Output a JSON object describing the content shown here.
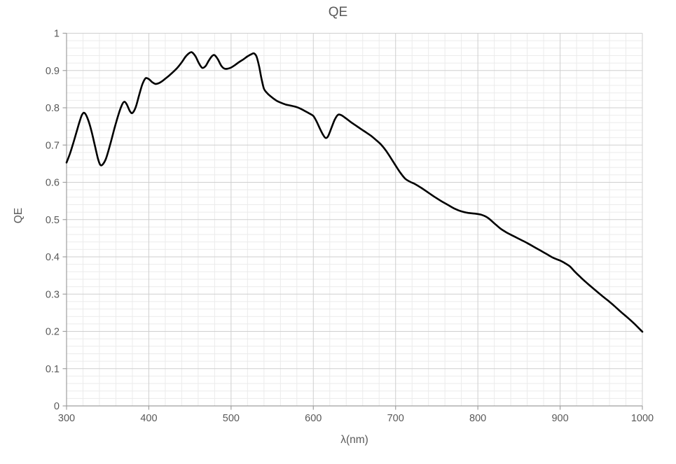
{
  "style": {
    "background": "#ffffff",
    "text_color": "#595959",
    "curve_color": "#000000",
    "grid_major_color": "#cfcfcf",
    "grid_minor_color": "#ebebeb",
    "axis_color": "#9f9f9f",
    "tick_label_font_px": 14.5
  },
  "chart": {
    "title": "QE",
    "x_axis_title": "λ(nm)",
    "y_axis_title": "QE"
  },
  "chart_data": {
    "type": "line",
    "title": "QE",
    "xlabel": "λ(nm)",
    "ylabel": "QE",
    "xlim": [
      300,
      1000
    ],
    "ylim": [
      0,
      1
    ],
    "x_major_step": 100,
    "x_minor_step": 20,
    "y_major_step": 0.1,
    "y_minor_step": 0.02,
    "grid": "major and minor gridlines on both axes",
    "legend": "none",
    "x_ticks": [
      {
        "v": 300,
        "label": "300"
      },
      {
        "v": 400,
        "label": "400"
      },
      {
        "v": 500,
        "label": "500"
      },
      {
        "v": 600,
        "label": "600"
      },
      {
        "v": 700,
        "label": "700"
      },
      {
        "v": 800,
        "label": "800"
      },
      {
        "v": 900,
        "label": "900"
      },
      {
        "v": 1000,
        "label": "1000"
      }
    ],
    "y_ticks": [
      {
        "v": 1,
        "label": "1"
      },
      {
        "v": 0.9,
        "label": "0.9"
      },
      {
        "v": 0.8,
        "label": "0.8"
      },
      {
        "v": 0.7,
        "label": "0.7"
      },
      {
        "v": 0.6,
        "label": "0.6"
      },
      {
        "v": 0.5,
        "label": "0.5"
      },
      {
        "v": 0.4,
        "label": "0.4"
      },
      {
        "v": 0.3,
        "label": "0.3"
      },
      {
        "v": 0.2,
        "label": "0.2"
      },
      {
        "v": 0.1,
        "label": "0.1"
      },
      {
        "v": 0,
        "label": "0"
      }
    ],
    "series": [
      {
        "name": "QE",
        "color": "#000000",
        "stroke_width": 2.6,
        "points": [
          [
            300,
            0.653
          ],
          [
            304,
            0.676
          ],
          [
            308,
            0.704
          ],
          [
            312,
            0.734
          ],
          [
            316,
            0.764
          ],
          [
            319,
            0.782
          ],
          [
            322,
            0.786
          ],
          [
            326,
            0.769
          ],
          [
            330,
            0.74
          ],
          [
            334,
            0.703
          ],
          [
            338,
            0.665
          ],
          [
            341,
            0.647
          ],
          [
            344,
            0.648
          ],
          [
            348,
            0.664
          ],
          [
            353,
            0.701
          ],
          [
            358,
            0.743
          ],
          [
            363,
            0.781
          ],
          [
            367,
            0.806
          ],
          [
            370,
            0.816
          ],
          [
            373,
            0.81
          ],
          [
            377,
            0.791
          ],
          [
            380,
            0.786
          ],
          [
            384,
            0.801
          ],
          [
            388,
            0.832
          ],
          [
            392,
            0.862
          ],
          [
            396,
            0.879
          ],
          [
            400,
            0.877
          ],
          [
            404,
            0.869
          ],
          [
            408,
            0.864
          ],
          [
            412,
            0.866
          ],
          [
            416,
            0.871
          ],
          [
            420,
            0.878
          ],
          [
            425,
            0.887
          ],
          [
            430,
            0.897
          ],
          [
            435,
            0.908
          ],
          [
            440,
            0.922
          ],
          [
            445,
            0.938
          ],
          [
            450,
            0.948
          ],
          [
            453,
            0.948
          ],
          [
            457,
            0.937
          ],
          [
            461,
            0.919
          ],
          [
            465,
            0.907
          ],
          [
            469,
            0.912
          ],
          [
            473,
            0.927
          ],
          [
            477,
            0.939
          ],
          [
            480,
            0.941
          ],
          [
            484,
            0.93
          ],
          [
            488,
            0.913
          ],
          [
            492,
            0.905
          ],
          [
            496,
            0.905
          ],
          [
            500,
            0.908
          ],
          [
            505,
            0.915
          ],
          [
            510,
            0.923
          ],
          [
            515,
            0.93
          ],
          [
            520,
            0.938
          ],
          [
            525,
            0.944
          ],
          [
            528,
            0.946
          ],
          [
            531,
            0.937
          ],
          [
            534,
            0.912
          ],
          [
            537,
            0.878
          ],
          [
            540,
            0.851
          ],
          [
            544,
            0.839
          ],
          [
            548,
            0.831
          ],
          [
            552,
            0.824
          ],
          [
            556,
            0.818
          ],
          [
            560,
            0.814
          ],
          [
            566,
            0.809
          ],
          [
            572,
            0.806
          ],
          [
            578,
            0.803
          ],
          [
            584,
            0.798
          ],
          [
            590,
            0.791
          ],
          [
            595,
            0.785
          ],
          [
            600,
            0.778
          ],
          [
            604,
            0.763
          ],
          [
            608,
            0.744
          ],
          [
            612,
            0.727
          ],
          [
            615,
            0.719
          ],
          [
            618,
            0.724
          ],
          [
            622,
            0.746
          ],
          [
            626,
            0.768
          ],
          [
            630,
            0.781
          ],
          [
            634,
            0.78
          ],
          [
            640,
            0.771
          ],
          [
            646,
            0.761
          ],
          [
            652,
            0.752
          ],
          [
            658,
            0.743
          ],
          [
            664,
            0.734
          ],
          [
            670,
            0.725
          ],
          [
            676,
            0.714
          ],
          [
            682,
            0.702
          ],
          [
            688,
            0.686
          ],
          [
            694,
            0.666
          ],
          [
            700,
            0.645
          ],
          [
            706,
            0.625
          ],
          [
            712,
            0.609
          ],
          [
            718,
            0.601
          ],
          [
            724,
            0.595
          ],
          [
            732,
            0.584
          ],
          [
            740,
            0.572
          ],
          [
            748,
            0.56
          ],
          [
            756,
            0.549
          ],
          [
            764,
            0.539
          ],
          [
            772,
            0.529
          ],
          [
            780,
            0.522
          ],
          [
            788,
            0.518
          ],
          [
            796,
            0.516
          ],
          [
            804,
            0.513
          ],
          [
            812,
            0.505
          ],
          [
            820,
            0.49
          ],
          [
            828,
            0.475
          ],
          [
            836,
            0.464
          ],
          [
            844,
            0.455
          ],
          [
            852,
            0.446
          ],
          [
            860,
            0.437
          ],
          [
            868,
            0.427
          ],
          [
            876,
            0.417
          ],
          [
            884,
            0.407
          ],
          [
            892,
            0.397
          ],
          [
            900,
            0.39
          ],
          [
            906,
            0.383
          ],
          [
            912,
            0.374
          ],
          [
            918,
            0.36
          ],
          [
            926,
            0.343
          ],
          [
            934,
            0.327
          ],
          [
            942,
            0.312
          ],
          [
            950,
            0.297
          ],
          [
            958,
            0.283
          ],
          [
            966,
            0.268
          ],
          [
            974,
            0.252
          ],
          [
            982,
            0.237
          ],
          [
            990,
            0.221
          ],
          [
            1000,
            0.199
          ]
        ]
      }
    ]
  }
}
